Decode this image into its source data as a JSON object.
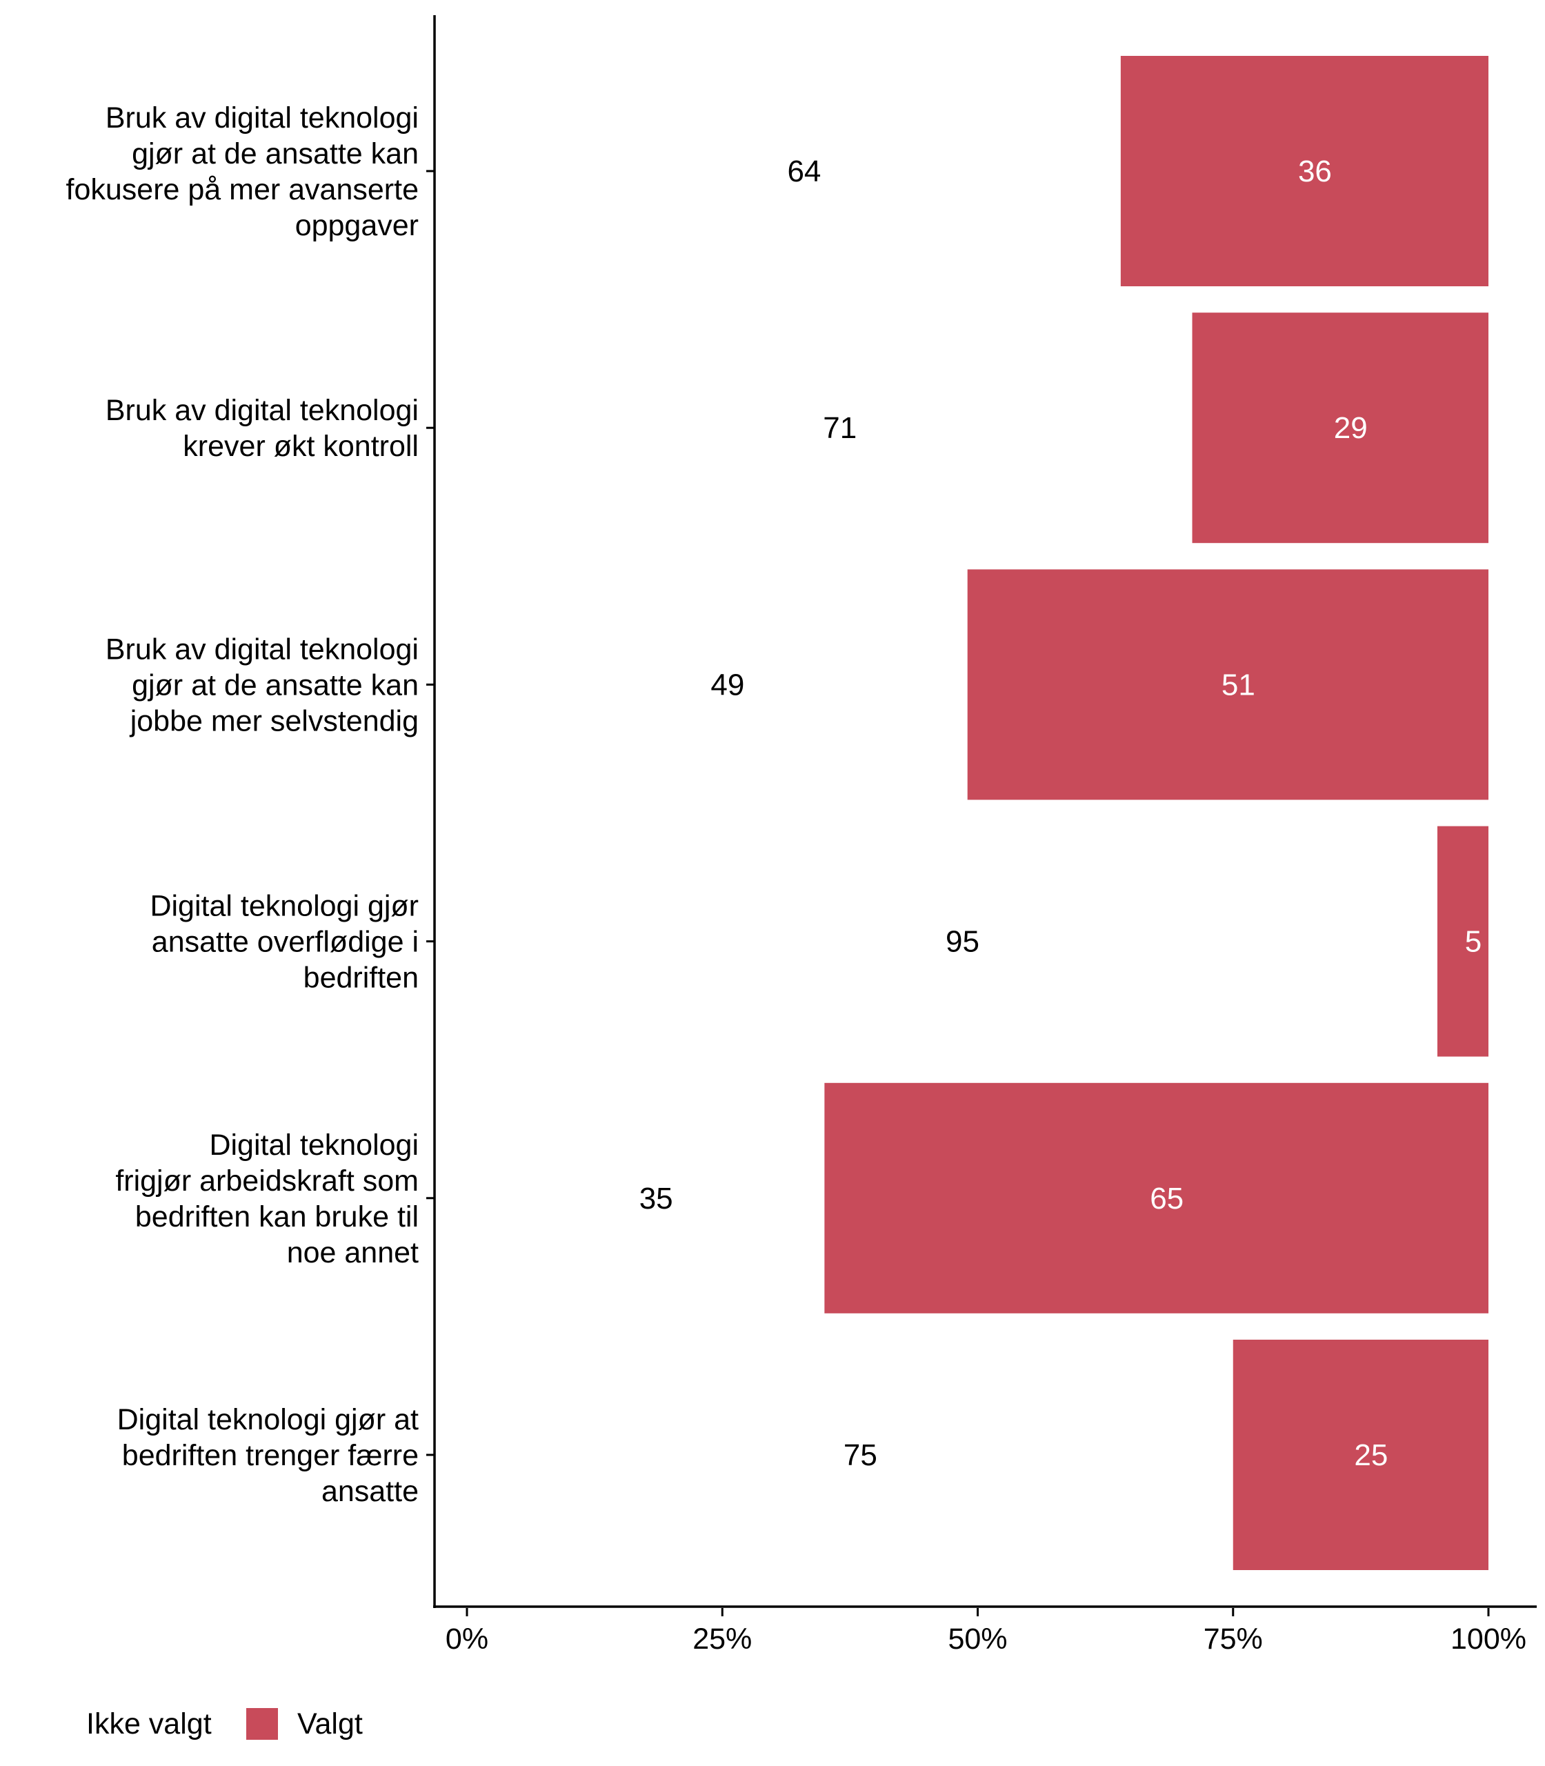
{
  "chart_data": {
    "type": "bar",
    "orientation": "horizontal",
    "stacked": true,
    "categories": [
      [
        "Bruk av digital teknologi",
        "gjør at de ansatte kan",
        "fokusere på mer avanserte",
        "oppgaver"
      ],
      [
        "Bruk av digital teknologi",
        "krever økt kontroll"
      ],
      [
        "Bruk av digital teknologi",
        "gjør at de ansatte kan",
        "jobbe mer selvstendig"
      ],
      [
        "Digital teknologi gjør",
        "ansatte overflødige i",
        "bedriften"
      ],
      [
        "Digital teknologi",
        "frigjør arbeidskraft som",
        "bedriften kan bruke til",
        "noe annet"
      ],
      [
        "Digital teknologi gjør at",
        "bedriften trenger færre",
        "ansatte"
      ]
    ],
    "series": [
      {
        "name": "Ikke valgt",
        "color": "#FFFFFF",
        "values": [
          64,
          71,
          49,
          95,
          35,
          75
        ]
      },
      {
        "name": "Valgt",
        "color": "#C84B5A",
        "values": [
          36,
          29,
          51,
          5,
          65,
          25
        ]
      }
    ],
    "xlim": [
      0,
      100
    ],
    "xticks": [
      "0%",
      "25%",
      "50%",
      "75%",
      "100%"
    ],
    "xlabel": "",
    "ylabel": "",
    "legend_position": "bottom-left",
    "grid": false
  }
}
